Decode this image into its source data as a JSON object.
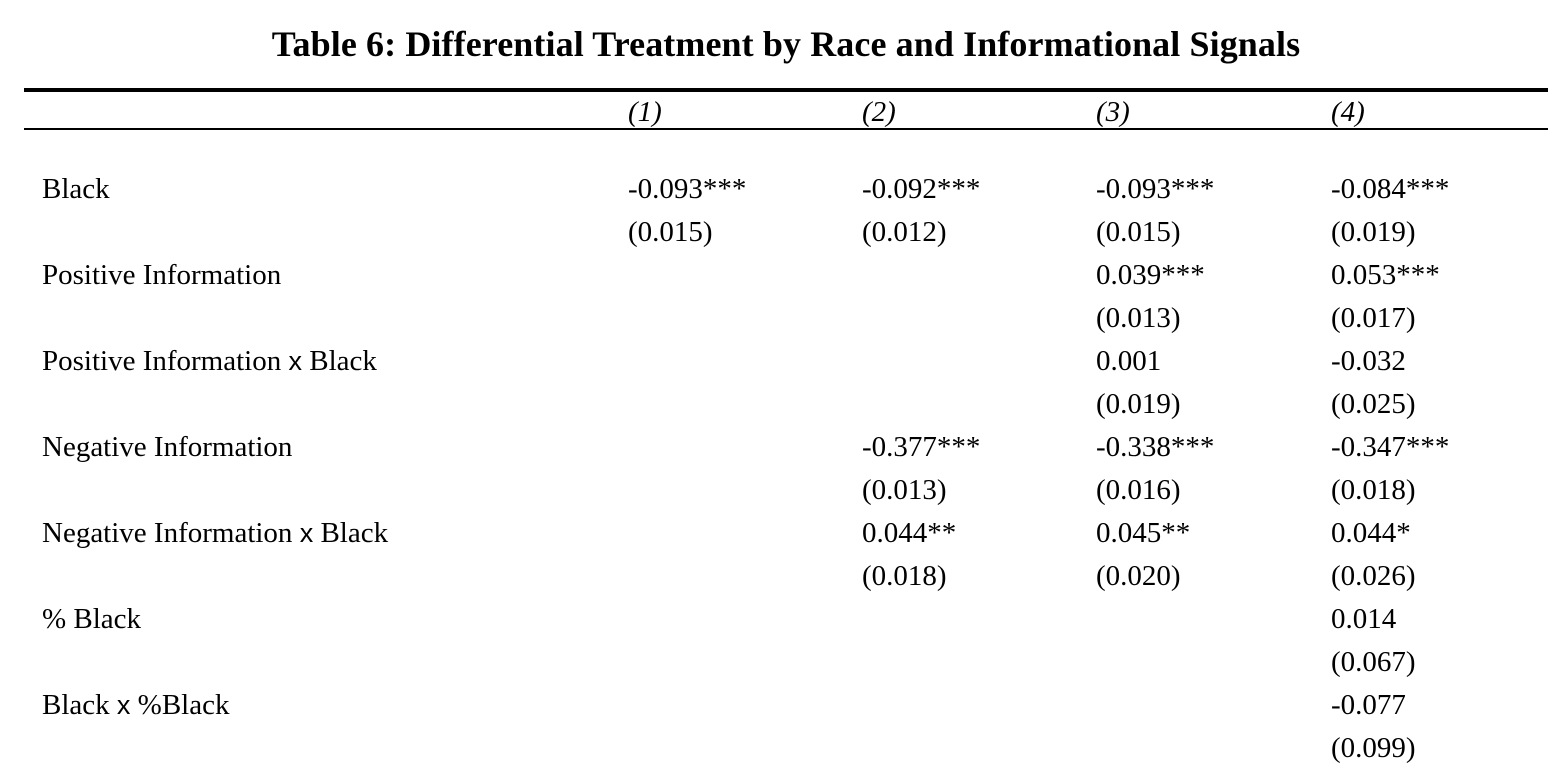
{
  "title": "Table 6: Differential Treatment by Race and Informational Signals",
  "columns": [
    "(1)",
    "(2)",
    "(3)",
    "(4)"
  ],
  "rows": [
    {
      "label": [
        "Black"
      ],
      "coef": [
        "-0.093***",
        "-0.092***",
        "-0.093***",
        "-0.084***"
      ],
      "se": [
        "(0.015)",
        "(0.012)",
        "(0.015)",
        "(0.019)"
      ]
    },
    {
      "label": [
        "Positive Information"
      ],
      "coef": [
        "",
        "",
        "0.039***",
        "0.053***"
      ],
      "se": [
        "",
        "",
        "(0.013)",
        "(0.017)"
      ]
    },
    {
      "label": [
        "Positive Information ",
        "x",
        " Black"
      ],
      "coef": [
        "",
        "",
        "0.001",
        "-0.032"
      ],
      "se": [
        "",
        "",
        "(0.019)",
        "(0.025)"
      ]
    },
    {
      "label": [
        "Negative Information"
      ],
      "coef": [
        "",
        "-0.377***",
        "-0.338***",
        "-0.347***"
      ],
      "se": [
        "",
        "(0.013)",
        "(0.016)",
        "(0.018)"
      ]
    },
    {
      "label": [
        "Negative Information ",
        "x",
        " Black"
      ],
      "coef": [
        "",
        "0.044**",
        "0.045**",
        "0.044*"
      ],
      "se": [
        "",
        "(0.018)",
        "(0.020)",
        "(0.026)"
      ]
    },
    {
      "label": [
        "% Black"
      ],
      "coef": [
        "",
        "",
        "",
        "0.014"
      ],
      "se": [
        "",
        "",
        "",
        "(0.067)"
      ]
    },
    {
      "label": [
        "Black ",
        "x",
        " %Black"
      ],
      "coef": [
        "",
        "",
        "",
        "-0.077"
      ],
      "se": [
        "",
        "",
        "",
        "(0.099)"
      ]
    }
  ]
}
